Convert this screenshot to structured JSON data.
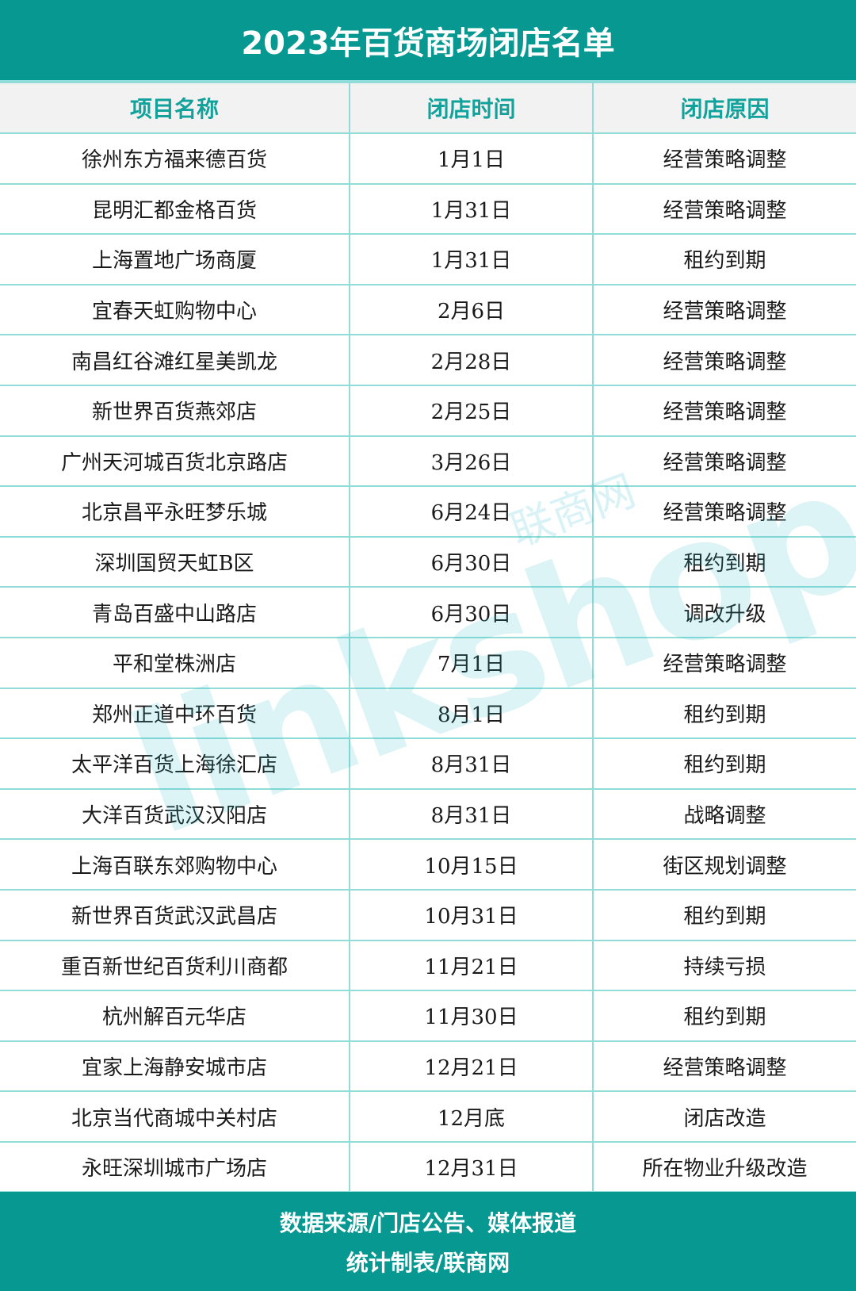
{
  "title": "2023年百货商场闭店名单",
  "columns": [
    "项目名称",
    "闭店时间",
    "闭店原因"
  ],
  "rows": [
    [
      "徐州东方福来德百货",
      "1月1日",
      "经营策略调整"
    ],
    [
      "昆明汇都金格百货",
      "1月31日",
      "经营策略调整"
    ],
    [
      "上海置地广场商厦",
      "1月31日",
      "租约到期"
    ],
    [
      "宜春天虹购物中心",
      "2月6日",
      "经营策略调整"
    ],
    [
      "南昌红谷滩红星美凯龙",
      "2月28日",
      "经营策略调整"
    ],
    [
      "新世界百货燕郊店",
      "2月25日",
      "经营策略调整"
    ],
    [
      "广州天河城百货北京路店",
      "3月26日",
      "经营策略调整"
    ],
    [
      "北京昌平永旺梦乐城",
      "6月24日",
      "经营策略调整"
    ],
    [
      "深圳国贸天虹B区",
      "6月30日",
      "租约到期"
    ],
    [
      "青岛百盛中山路店",
      "6月30日",
      "调改升级"
    ],
    [
      "平和堂株洲店",
      "7月1日",
      "经营策略调整"
    ],
    [
      "郑州正道中环百货",
      "8月1日",
      "租约到期"
    ],
    [
      "太平洋百货上海徐汇店",
      "8月31日",
      "租约到期"
    ],
    [
      "大洋百货武汉汉阳店",
      "8月31日",
      "战略调整"
    ],
    [
      "上海百联东郊购物中心",
      "10月15日",
      "街区规划调整"
    ],
    [
      "新世界百货武汉武昌店",
      "10月31日",
      "租约到期"
    ],
    [
      "重百新世纪百货利川商都",
      "11月21日",
      "持续亏损"
    ],
    [
      "杭州解百元华店",
      "11月30日",
      "租约到期"
    ],
    [
      "宜家上海静安城市店",
      "12月21日",
      "经营策略调整"
    ],
    [
      "北京当代商城中关村店",
      "12月底",
      "闭店改造"
    ],
    [
      "永旺深圳城市广场店",
      "12月31日",
      "所在物业升级改造"
    ]
  ],
  "footer": {
    "line1": "数据来源/门店公告、媒体报道",
    "line2": "统计制表/联商网"
  },
  "watermark": {
    "logo": "linkshop",
    "cn": "联商网"
  },
  "colors": {
    "accent": "#079892",
    "header_text": "#13a29b",
    "border": "#8fdcd8",
    "header_bg": "#f2f2f2"
  }
}
